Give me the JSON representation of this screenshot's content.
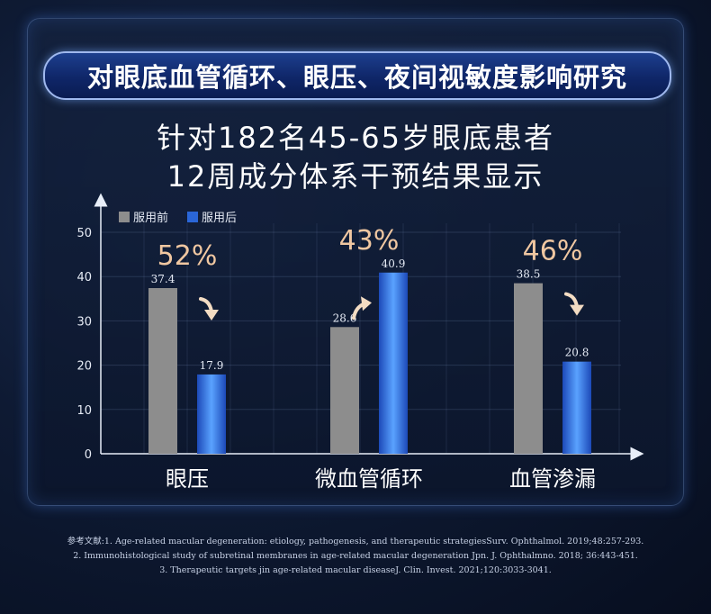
{
  "title": "对眼底血管循环、眼压、夜间视敏度影响研究",
  "subtitle_line1": "针对182名45-65岁眼底患者",
  "subtitle_line2": "12周成分体系干预结果显示",
  "colors": {
    "before": "#8d8d8d",
    "after": "#2a66d8",
    "pct": "#f0c7a1",
    "arrow": "#f3dcc3"
  },
  "icons": {
    "trend_down": "arrow-down-icon",
    "trend_up": "arrow-up-icon"
  },
  "chart_data": {
    "type": "bar",
    "categories": [
      "眼压",
      "微血管循环",
      "血管渗漏"
    ],
    "series": [
      {
        "name": "服用前",
        "values": [
          37.4,
          28.6,
          38.5
        ]
      },
      {
        "name": "服用后",
        "values": [
          17.9,
          40.9,
          20.8
        ]
      }
    ],
    "value_labels": [
      [
        "37.4",
        "28.6",
        "38.5"
      ],
      [
        "17.9",
        "40.9",
        "20.8"
      ]
    ],
    "annotations": [
      "52%",
      "43%",
      "46%"
    ],
    "trend": [
      "down",
      "up",
      "down"
    ],
    "yticks": [
      "0",
      "10",
      "20",
      "30",
      "40",
      "50"
    ],
    "ylim": [
      0,
      50
    ],
    "grid": true,
    "legend": "top-left"
  },
  "references": [
    "参考文献:1. Age-related macular degeneration: etiology, pathogenesis, and therapeutic strategiesSurv. Ophthalmol. 2019;48:257-293.",
    "2. Immunohistological study of subretinal membranes in age-related macular degeneration Jpn. J. Ophthalmno. 2018; 36:443-451.",
    "3. Therapeutic targets jin age-related macular diseaseJ. Clin. Invest. 2021;120:3033-3041."
  ]
}
